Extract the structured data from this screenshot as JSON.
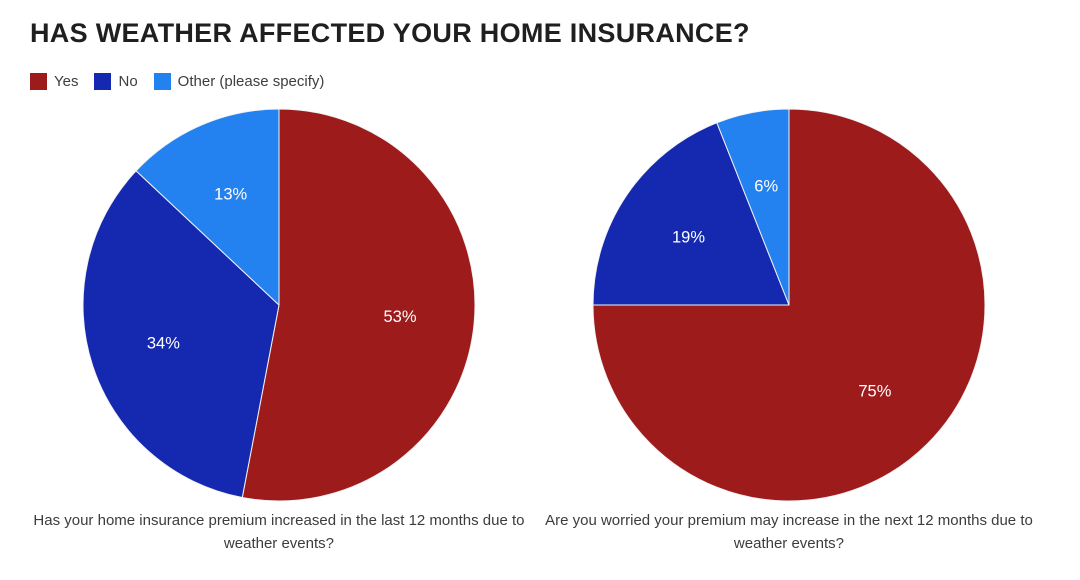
{
  "page": {
    "title": "HAS WEATHER AFFECTED YOUR HOME INSURANCE?"
  },
  "colors": {
    "yes": "#9E1B1C",
    "no": "#1529B0",
    "other": "#2382F0",
    "title_text": "#1F1F1F",
    "caption_text": "#3C3C3C",
    "slice_label_text": "#FFFFFF",
    "slice_separator": "#F3F3F3"
  },
  "legend": {
    "items": [
      {
        "label": "Yes",
        "color": "#9E1B1C"
      },
      {
        "label": "No",
        "color": "#1529B0"
      },
      {
        "label": "Other (please specify)",
        "color": "#2382F0"
      }
    ]
  },
  "chart_data": [
    {
      "type": "pie",
      "caption": "Has your home insurance premium increased in the last 12 months due to weather events?",
      "categories": [
        "Yes",
        "No",
        "Other (please specify)"
      ],
      "values": [
        53,
        34,
        13
      ],
      "value_labels": [
        "53%",
        "34%",
        "13%"
      ],
      "colors": [
        "#9E1B1C",
        "#1529B0",
        "#2382F0"
      ],
      "start_angle_deg": -90,
      "direction": "clockwise",
      "label_radius_ratio": 0.62,
      "legend_position": "top-left"
    },
    {
      "type": "pie",
      "caption": "Are you worried your premium may increase in the next 12 months due to weather events?",
      "categories": [
        "Yes",
        "No",
        "Other (please specify)"
      ],
      "values": [
        75,
        19,
        6
      ],
      "value_labels": [
        "75%",
        "19%",
        "6%"
      ],
      "colors": [
        "#9E1B1C",
        "#1529B0",
        "#2382F0"
      ],
      "start_angle_deg": -90,
      "direction": "clockwise",
      "label_radius_ratio": 0.62,
      "legend_position": "top-left"
    }
  ]
}
